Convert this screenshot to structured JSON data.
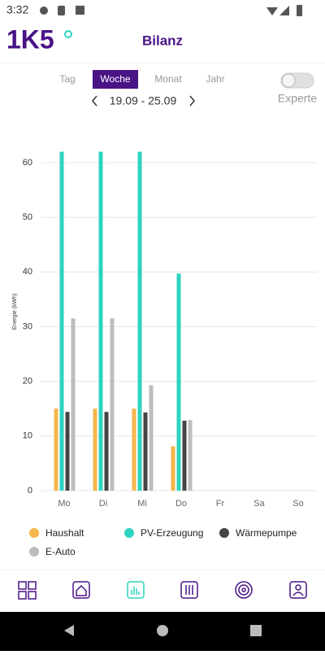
{
  "status_bar": {
    "time": "3:32"
  },
  "header": {
    "logo": "1K5",
    "title": "Bilanz"
  },
  "tabs": [
    "Tag",
    "Woche",
    "Monat",
    "Jahr"
  ],
  "selected_tab": "Woche",
  "date_range": "19.09 - 25.09",
  "expert_label": "Experte",
  "chart_data": {
    "type": "bar",
    "y_label": "Energie (kWh)",
    "categories": [
      "Mo",
      "Di",
      "Mi",
      "Do",
      "Fr",
      "Sa",
      "So"
    ],
    "series": [
      {
        "name": "Haushalt",
        "color": "#f6b64c",
        "values": [
          15,
          15,
          15,
          8.1,
          null,
          null,
          null
        ]
      },
      {
        "name": "PV-Erzeugung",
        "color": "#2ed3c1",
        "values": [
          62,
          62,
          62,
          39.7,
          null,
          null,
          null
        ]
      },
      {
        "name": "Wärmepumpe",
        "color": "#444444",
        "values": [
          14.4,
          14.4,
          14.3,
          12.8,
          null,
          null,
          null
        ]
      },
      {
        "name": "E-Auto",
        "color": "#bdbdbd",
        "values": [
          31.5,
          31.5,
          19.3,
          12.9,
          null,
          null,
          null
        ]
      }
    ],
    "ylim": [
      0,
      64
    ],
    "yticks": [
      0,
      10,
      20,
      30,
      40,
      50,
      60
    ],
    "grid": true
  }
}
